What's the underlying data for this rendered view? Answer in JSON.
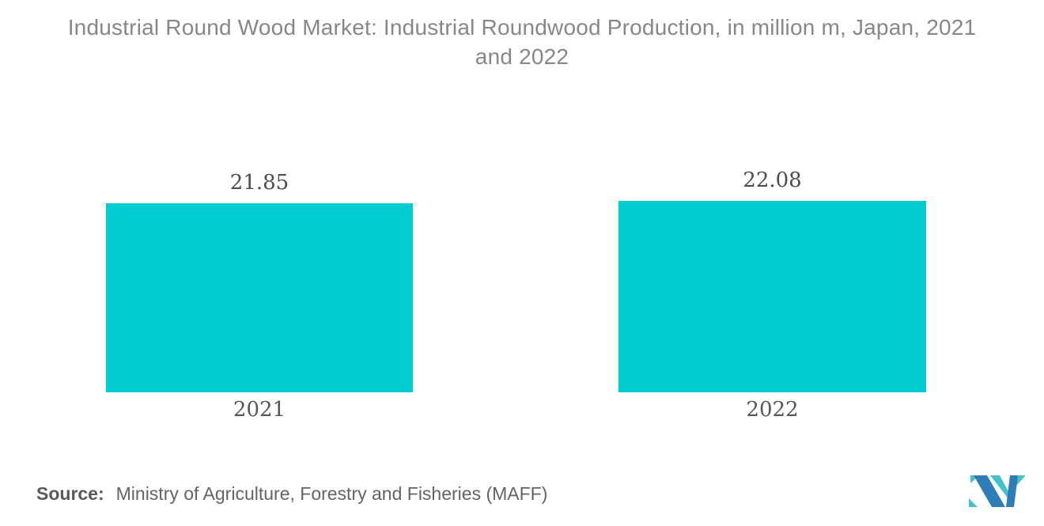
{
  "title": {
    "line1": "Industrial Round Wood Market: Industrial Roundwood Production, in million m, Japan, 2021",
    "line2": "and 2022"
  },
  "chart_data": {
    "type": "bar",
    "title": "Industrial Round Wood Market: Industrial Roundwood Production, in million m, Japan, 2021 and 2022",
    "categories": [
      "2021",
      "2022"
    ],
    "values": [
      21.85,
      22.08
    ],
    "value_labels": [
      "21.85",
      "22.08"
    ],
    "xlabel": "",
    "ylabel": "",
    "ylim": [
      0,
      22.08
    ],
    "grid": false,
    "legend": false,
    "axes_visible": false,
    "bar_color": "#00CBD1"
  },
  "source": {
    "label": "Source:",
    "text": "Ministry of Agriculture, Forestry and Fisheries (MAFF)"
  },
  "logo": {
    "name": "mordor-intelligence-logo",
    "blue": "#2E7CB8",
    "teal": "#43C3C8"
  },
  "colors": {
    "background": "#FFFFFF",
    "title_text": "#87878A",
    "value_label_text": "#4B4C4E",
    "category_label_text": "#565659",
    "source_text": "#636467"
  }
}
